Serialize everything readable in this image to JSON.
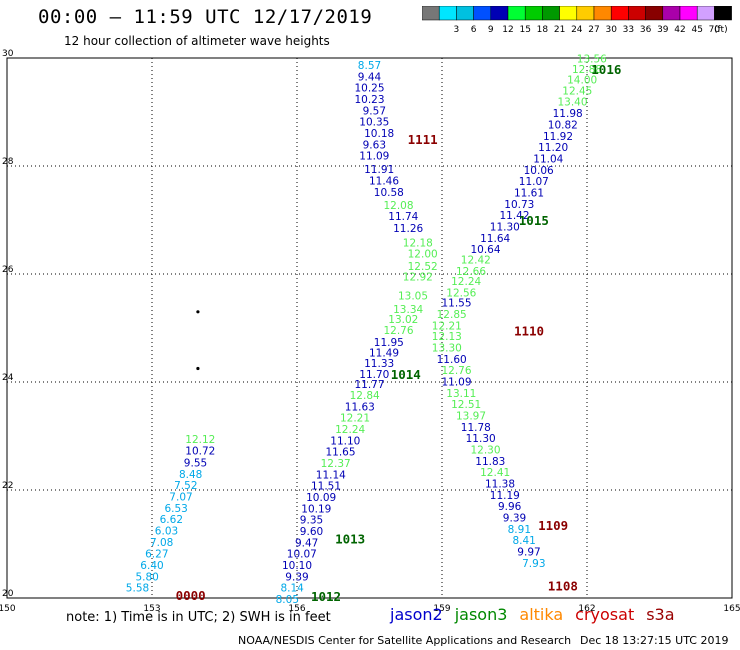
{
  "header": {
    "title": "00:00 – 11:59 UTC 12/17/2019",
    "subtitle": "12 hour collection of altimeter wave heights"
  },
  "scale": {
    "unit": "(ft)",
    "bins": [
      {
        "color": "#777777",
        "label": ""
      },
      {
        "color": "#00e6ff",
        "label": "3"
      },
      {
        "color": "#00c0e0",
        "label": "6"
      },
      {
        "color": "#0050ff",
        "label": "9"
      },
      {
        "color": "#0000b4",
        "label": "12"
      },
      {
        "color": "#00ff33",
        "label": "15"
      },
      {
        "color": "#00cc00",
        "label": "18"
      },
      {
        "color": "#009900",
        "label": "21"
      },
      {
        "color": "#ffff00",
        "label": "24"
      },
      {
        "color": "#ffcc00",
        "label": "27"
      },
      {
        "color": "#ff8800",
        "label": "30"
      },
      {
        "color": "#ff0000",
        "label": "33"
      },
      {
        "color": "#cc0000",
        "label": "36"
      },
      {
        "color": "#880000",
        "label": "39"
      },
      {
        "color": "#aa00aa",
        "label": "42"
      },
      {
        "color": "#ff00ff",
        "label": "45"
      },
      {
        "color": "#d2a0ff",
        "label": "70"
      },
      {
        "color": "#000000",
        "label": ""
      }
    ]
  },
  "map": {
    "lon_range": [
      150,
      165
    ],
    "lat_range": [
      20,
      30
    ],
    "lon_ticks": [
      "150",
      "153",
      "156",
      "159",
      "162",
      "165"
    ],
    "lat_ticks": [
      "20",
      "22",
      "24",
      "26",
      "28",
      "30"
    ],
    "islands": [
      [
        153.95,
        25.3
      ],
      [
        153.95,
        24.25
      ]
    ],
    "time_labels": [
      {
        "text": "1016",
        "lon": 162.4,
        "lat": 29.8,
        "color": "#006400"
      },
      {
        "text": "1111",
        "lon": 158.6,
        "lat": 28.5,
        "color": "#8b0000"
      },
      {
        "text": "1015",
        "lon": 160.9,
        "lat": 27.0,
        "color": "#006400"
      },
      {
        "text": "1110",
        "lon": 160.8,
        "lat": 24.95,
        "color": "#8b0000"
      },
      {
        "text": "1014",
        "lon": 158.25,
        "lat": 24.15,
        "color": "#006400"
      },
      {
        "text": "1109",
        "lon": 161.3,
        "lat": 21.35,
        "color": "#8b0000"
      },
      {
        "text": "1013",
        "lon": 157.1,
        "lat": 21.1,
        "color": "#006400"
      },
      {
        "text": "1108",
        "lon": 161.5,
        "lat": 20.23,
        "color": "#8b0000"
      },
      {
        "text": "1012",
        "lon": 156.6,
        "lat": 20.04,
        "color": "#006400"
      },
      {
        "text": "0000",
        "lon": 153.8,
        "lat": 20.06,
        "color": "#8b0000"
      }
    ],
    "tracks": [
      {
        "points": [
          [
            "12.12",
            154.0,
            22.94,
            "#55ee55"
          ],
          [
            "10.72",
            154.0,
            22.73,
            "#0000b4"
          ],
          [
            "9.55",
            153.9,
            22.51,
            "#0000b4"
          ],
          [
            "8.48",
            153.8,
            22.3,
            "#00a8e8"
          ],
          [
            "7.52",
            153.7,
            22.09,
            "#00a8e8"
          ],
          [
            "7.07",
            153.6,
            21.88,
            "#00a8e8"
          ],
          [
            "6.53",
            153.5,
            21.67,
            "#00a8e8"
          ],
          [
            "6.62",
            153.4,
            21.46,
            "#00a8e8"
          ],
          [
            "6.03",
            153.3,
            21.25,
            "#00a8e8"
          ],
          [
            "7.08",
            153.2,
            21.04,
            "#00a8e8"
          ],
          [
            "6.27",
            153.1,
            20.82,
            "#00a8e8"
          ],
          [
            "6.40",
            153.0,
            20.61,
            "#00a8e8"
          ],
          [
            "5.80",
            152.9,
            20.4,
            "#00a8e8"
          ],
          [
            "5.58",
            152.7,
            20.19,
            "#00a8e8"
          ]
        ]
      },
      {
        "points": [
          [
            "8.57",
            157.5,
            29.87,
            "#00a8e8"
          ],
          [
            "9.44",
            157.5,
            29.66,
            "#0000b4"
          ],
          [
            "10.25",
            157.5,
            29.45,
            "#0000b4"
          ],
          [
            "10.23",
            157.5,
            29.24,
            "#0000b4"
          ],
          [
            "9.57",
            157.6,
            29.03,
            "#0000b4"
          ],
          [
            "10.35",
            157.6,
            28.82,
            "#0000b4"
          ],
          [
            "10.18",
            157.7,
            28.61,
            "#0000b4"
          ],
          [
            "9.63",
            157.6,
            28.4,
            "#0000b4"
          ],
          [
            "11.09",
            157.6,
            28.19,
            "#0000b4"
          ],
          [
            "11.91",
            157.7,
            27.94,
            "#0000b4"
          ],
          [
            "11.46",
            157.8,
            27.73,
            "#0000b4"
          ],
          [
            "10.58",
            157.9,
            27.52,
            "#0000b4"
          ],
          [
            "12.08",
            158.1,
            27.28,
            "#55ee55"
          ],
          [
            "11.74",
            158.2,
            27.07,
            "#0000b4"
          ],
          [
            "11.26",
            158.3,
            26.85,
            "#0000b4"
          ],
          [
            "12.18",
            158.5,
            26.58,
            "#55ee55"
          ],
          [
            "12.00",
            158.6,
            26.38,
            "#55ee55"
          ],
          [
            "12.52",
            158.6,
            26.15,
            "#55ee55"
          ],
          [
            "12.92",
            158.5,
            25.95,
            "#55ee55"
          ],
          [
            "13.05",
            158.4,
            25.6,
            "#55ee55"
          ],
          [
            "13.34",
            158.3,
            25.35,
            "#55ee55"
          ],
          [
            "13.02",
            158.2,
            25.17,
            "#55ee55"
          ],
          [
            "12.76",
            158.1,
            24.96,
            "#55ee55"
          ],
          [
            "11.95",
            157.9,
            24.74,
            "#0000b4"
          ],
          [
            "11.49",
            157.8,
            24.55,
            "#0000b4"
          ],
          [
            "11.33",
            157.7,
            24.35,
            "#0000b4"
          ],
          [
            "11.70",
            157.6,
            24.15,
            "#0000b4"
          ],
          [
            "11.77",
            157.5,
            23.96,
            "#0000b4"
          ],
          [
            "12.84",
            157.4,
            23.76,
            "#55ee55"
          ],
          [
            "11.63",
            157.3,
            23.55,
            "#0000b4"
          ],
          [
            "12.21",
            157.2,
            23.34,
            "#55ee55"
          ],
          [
            "12.24",
            157.1,
            23.13,
            "#55ee55"
          ],
          [
            "11.10",
            157.0,
            22.92,
            "#0000b4"
          ],
          [
            "11.65",
            156.9,
            22.71,
            "#0000b4"
          ],
          [
            "12.37",
            156.8,
            22.5,
            "#55ee55"
          ],
          [
            "11.14",
            156.7,
            22.29,
            "#0000b4"
          ],
          [
            "11.51",
            156.6,
            22.08,
            "#0000b4"
          ],
          [
            "10.09",
            156.5,
            21.87,
            "#0000b4"
          ],
          [
            "10.19",
            156.4,
            21.66,
            "#0000b4"
          ],
          [
            "9.35",
            156.3,
            21.45,
            "#0000b4"
          ],
          [
            "9.60",
            156.3,
            21.24,
            "#0000b4"
          ],
          [
            "9.47",
            156.2,
            21.03,
            "#0000b4"
          ],
          [
            "10.07",
            156.1,
            20.82,
            "#0000b4"
          ],
          [
            "10.10",
            156.0,
            20.61,
            "#0000b4"
          ],
          [
            "9.39",
            156.0,
            20.4,
            "#0000b4"
          ],
          [
            "8.14",
            155.9,
            20.19,
            "#00a8e8"
          ],
          [
            "8.05",
            155.8,
            19.98,
            "#00a8e8"
          ]
        ]
      },
      {
        "points": [
          [
            "13.56",
            162.1,
            29.99,
            "#55ee55"
          ],
          [
            "12.88",
            162.0,
            29.8,
            "#55ee55"
          ],
          [
            "14.00",
            161.9,
            29.6,
            "#55ee55"
          ],
          [
            "12.45",
            161.8,
            29.4,
            "#55ee55"
          ],
          [
            "13.40",
            161.7,
            29.19,
            "#55ee55"
          ],
          [
            "11.98",
            161.6,
            28.98,
            "#0000b4"
          ],
          [
            "10.82",
            161.5,
            28.77,
            "#0000b4"
          ],
          [
            "11.92",
            161.4,
            28.56,
            "#0000b4"
          ],
          [
            "11.20",
            161.3,
            28.35,
            "#0000b4"
          ],
          [
            "11.04",
            161.2,
            28.14,
            "#0000b4"
          ],
          [
            "10.06",
            161.0,
            27.93,
            "#0000b4"
          ],
          [
            "11.07",
            160.9,
            27.72,
            "#0000b4"
          ],
          [
            "11.61",
            160.8,
            27.51,
            "#0000b4"
          ],
          [
            "10.73",
            160.6,
            27.3,
            "#0000b4"
          ],
          [
            "11.42",
            160.5,
            27.09,
            "#0000b4"
          ],
          [
            "11.30",
            160.3,
            26.88,
            "#0000b4"
          ],
          [
            "11.64",
            160.1,
            26.67,
            "#0000b4"
          ],
          [
            "10.64",
            159.9,
            26.46,
            "#0000b4"
          ],
          [
            "12.42",
            159.7,
            26.27,
            "#55ee55"
          ],
          [
            "12.66",
            159.6,
            26.06,
            "#55ee55"
          ],
          [
            "12.24",
            159.5,
            25.87,
            "#55ee55"
          ],
          [
            "12.56",
            159.4,
            25.66,
            "#55ee55"
          ],
          [
            "11.55",
            159.3,
            25.47,
            "#0000b4"
          ],
          [
            "12.85",
            159.2,
            25.26,
            "#55ee55"
          ],
          [
            "12.21",
            159.1,
            25.05,
            "#55ee55"
          ],
          [
            "12.13",
            159.1,
            24.85,
            "#55ee55"
          ],
          [
            "13.30",
            159.1,
            24.64,
            "#55ee55"
          ],
          [
            "11.60",
            159.2,
            24.43,
            "#0000b4"
          ],
          [
            "12.76",
            159.3,
            24.22,
            "#55ee55"
          ],
          [
            "11.09",
            159.3,
            24.01,
            "#0000b4"
          ],
          [
            "13.11",
            159.4,
            23.8,
            "#55ee55"
          ],
          [
            "12.51",
            159.5,
            23.59,
            "#55ee55"
          ],
          [
            "13.97",
            159.6,
            23.38,
            "#55ee55"
          ],
          [
            "11.78",
            159.7,
            23.17,
            "#0000b4"
          ],
          [
            "11.30",
            159.8,
            22.96,
            "#0000b4"
          ],
          [
            "12.30",
            159.9,
            22.75,
            "#55ee55"
          ],
          [
            "11.83",
            160.0,
            22.54,
            "#0000b4"
          ],
          [
            "12.41",
            160.1,
            22.33,
            "#55ee55"
          ],
          [
            "11.38",
            160.2,
            22.12,
            "#0000b4"
          ],
          [
            "11.19",
            160.3,
            21.91,
            "#0000b4"
          ],
          [
            "9.96",
            160.4,
            21.7,
            "#0000b4"
          ],
          [
            "9.39",
            160.5,
            21.49,
            "#0000b4"
          ],
          [
            "8.91",
            160.6,
            21.28,
            "#00a8e8"
          ],
          [
            "8.41",
            160.7,
            21.07,
            "#00a8e8"
          ],
          [
            "9.97",
            160.8,
            20.86,
            "#0000b4"
          ],
          [
            "7.93",
            160.9,
            20.65,
            "#00a8e8"
          ]
        ]
      }
    ]
  },
  "footer": {
    "note": "note:  1) Time is in UTC;  2) SWH is in feet",
    "satellites": [
      {
        "name": "jason2",
        "color": "#0000cc"
      },
      {
        "name": "jason3",
        "color": "#008800"
      },
      {
        "name": "altika",
        "color": "#ff8800"
      },
      {
        "name": "cryosat",
        "color": "#cc0000"
      },
      {
        "name": "s3a",
        "color": "#990000"
      }
    ],
    "credit": "NOAA/NESDIS Center for Satellite Applications and Research",
    "timestamp": "Dec 18 13:27:15 UTC 2019"
  }
}
